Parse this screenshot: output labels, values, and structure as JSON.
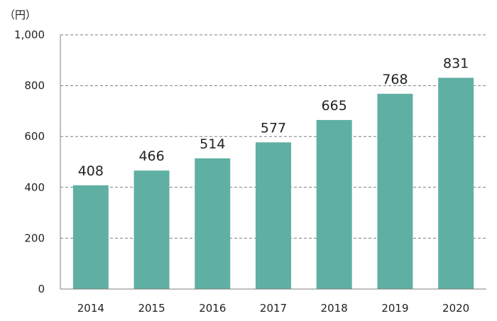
{
  "chart_data": {
    "type": "bar",
    "title": "",
    "xlabel": "",
    "ylabel": "",
    "unit": "（円）",
    "categories": [
      "2014",
      "2015",
      "2016",
      "2017",
      "2018",
      "2019",
      "2020"
    ],
    "values": [
      408,
      466,
      514,
      577,
      665,
      768,
      831
    ],
    "ylim": [
      0,
      1000
    ],
    "yticks": [
      0,
      200,
      400,
      600,
      800,
      1000
    ],
    "ytick_labels": [
      "0",
      "200",
      "400",
      "600",
      "800",
      "1,000"
    ],
    "grid": true,
    "legend": "none",
    "colors": {
      "bar": "#5fb0a3",
      "grid": "#7f7f7f",
      "axis": "#7f7f7f"
    }
  }
}
